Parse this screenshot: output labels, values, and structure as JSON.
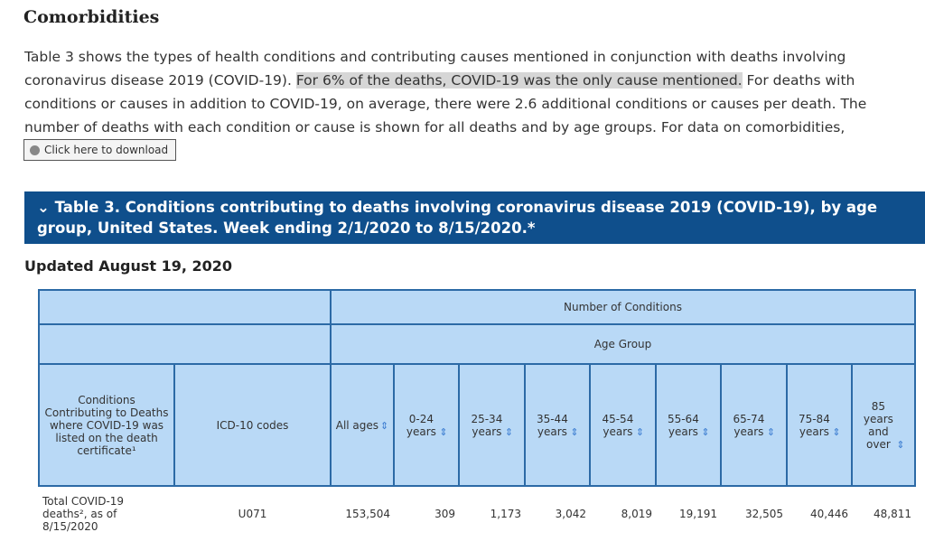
{
  "heading": "Comorbidities",
  "paragraph": {
    "before": "Table 3 shows the types of health conditions and contributing causes mentioned in conjunction with deaths involving coronavirus disease 2019 (COVID-19). ",
    "highlight": "For 6% of the deaths, COVID-19 was the only cause mentioned.",
    "after": " For deaths with conditions or causes in addition to COVID-19, on average, there were 2.6 additional conditions or causes per death. The number of deaths with each condition or cause is shown for all deaths and by age groups. For data on comorbidities,"
  },
  "download_button": "Click here to download",
  "table_caption": "Table 3. Conditions contributing to deaths involving coronavirus disease 2019 (COVID-19), by age group, United States. Week ending 2/1/2020 to 8/15/2020.*",
  "updated": "Updated August 19, 2020",
  "table": {
    "group_header": "Number of Conditions",
    "age_header": "Age Group",
    "columns": [
      "Conditions Contributing to Deaths where COVID-19 was listed on the death certificate¹",
      "ICD-10 codes",
      "All ages",
      "0-24 years",
      "25-34 years",
      "35-44 years",
      "45-54 years",
      "55-64 years",
      "65-74 years",
      "75-84 years",
      "85 years and over"
    ],
    "rows": [
      [
        "Total COVID-19 deaths², as of 8/15/2020",
        "U071",
        "153,504",
        "309",
        "1,173",
        "3,042",
        "8,019",
        "19,191",
        "32,505",
        "40,446",
        "48,811"
      ]
    ]
  }
}
